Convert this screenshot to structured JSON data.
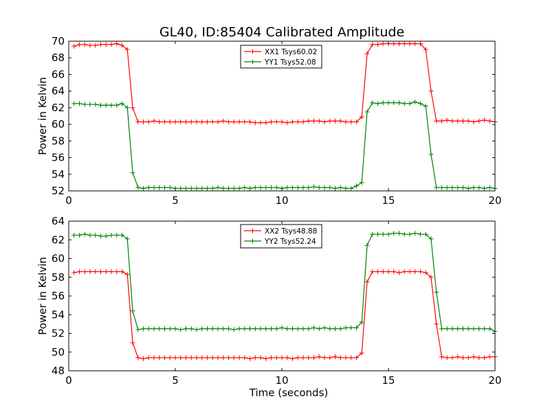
{
  "title": "GL40, ID:85404 Calibrated Amplitude",
  "colors": {
    "red": "#ff0000",
    "green": "#008000",
    "axis": "#000000",
    "background": "#ffffff"
  },
  "chart_data": [
    {
      "type": "line",
      "ylabel": "Power in Kelvin",
      "xlabel": "",
      "xlim": [
        0,
        20
      ],
      "ylim": [
        52,
        70
      ],
      "xticks": [
        "0",
        "5",
        "10",
        "15",
        "20"
      ],
      "yticks": [
        "52",
        "54",
        "56",
        "58",
        "60",
        "62",
        "64",
        "66",
        "68",
        "70"
      ],
      "legend_position": "top-center",
      "x": [
        0.25,
        0.5,
        0.75,
        1.0,
        1.25,
        1.5,
        1.75,
        2.0,
        2.25,
        2.5,
        2.75,
        3.0,
        3.25,
        3.5,
        3.75,
        4.0,
        4.25,
        4.5,
        4.75,
        5.0,
        5.25,
        5.5,
        5.75,
        6.0,
        6.25,
        6.5,
        6.75,
        7.0,
        7.25,
        7.5,
        7.75,
        8.0,
        8.25,
        8.5,
        8.75,
        9.0,
        9.25,
        9.5,
        9.75,
        10.0,
        10.25,
        10.5,
        10.75,
        11.0,
        11.25,
        11.5,
        11.75,
        12.0,
        12.25,
        12.5,
        12.75,
        13.0,
        13.25,
        13.5,
        13.75,
        14.0,
        14.25,
        14.5,
        14.75,
        15.0,
        15.25,
        15.5,
        15.75,
        16.0,
        16.25,
        16.5,
        16.75,
        17.0,
        17.25,
        17.5,
        17.75,
        18.0,
        18.25,
        18.5,
        18.75,
        19.0,
        19.25,
        19.5,
        19.75,
        20.0
      ],
      "series": [
        {
          "name": "XX1 Tsys60.02",
          "color": "#ff0000",
          "values": [
            69.4,
            69.6,
            69.6,
            69.5,
            69.5,
            69.6,
            69.6,
            69.6,
            69.7,
            69.5,
            69.0,
            62.0,
            60.3,
            60.3,
            60.3,
            60.4,
            60.3,
            60.3,
            60.3,
            60.3,
            60.3,
            60.3,
            60.3,
            60.3,
            60.3,
            60.3,
            60.3,
            60.3,
            60.4,
            60.3,
            60.3,
            60.3,
            60.3,
            60.3,
            60.2,
            60.2,
            60.2,
            60.3,
            60.3,
            60.3,
            60.2,
            60.3,
            60.3,
            60.3,
            60.4,
            60.4,
            60.4,
            60.3,
            60.4,
            60.4,
            60.4,
            60.3,
            60.3,
            60.3,
            60.9,
            68.5,
            69.6,
            69.6,
            69.7,
            69.7,
            69.7,
            69.7,
            69.7,
            69.7,
            69.7,
            69.7,
            69.0,
            64.0,
            60.4,
            60.4,
            60.5,
            60.4,
            60.4,
            60.4,
            60.4,
            60.3,
            60.4,
            60.5,
            60.4,
            60.3
          ]
        },
        {
          "name": "YY1 Tsys52.08",
          "color": "#008000",
          "values": [
            62.5,
            62.5,
            62.4,
            62.4,
            62.4,
            62.3,
            62.3,
            62.3,
            62.3,
            62.5,
            62.0,
            54.2,
            52.4,
            52.3,
            52.4,
            52.4,
            52.4,
            52.4,
            52.4,
            52.3,
            52.3,
            52.3,
            52.3,
            52.3,
            52.3,
            52.3,
            52.3,
            52.4,
            52.3,
            52.3,
            52.3,
            52.3,
            52.4,
            52.3,
            52.4,
            52.4,
            52.4,
            52.4,
            52.4,
            52.3,
            52.4,
            52.4,
            52.4,
            52.4,
            52.4,
            52.5,
            52.4,
            52.4,
            52.4,
            52.3,
            52.4,
            52.3,
            52.3,
            52.6,
            53.0,
            61.5,
            62.6,
            62.5,
            62.6,
            62.6,
            62.6,
            62.6,
            62.5,
            62.5,
            62.7,
            62.5,
            62.2,
            56.4,
            52.4,
            52.4,
            52.4,
            52.4,
            52.4,
            52.4,
            52.3,
            52.4,
            52.4,
            52.3,
            52.4,
            52.3
          ]
        }
      ]
    },
    {
      "type": "line",
      "ylabel": "Power in Kelvin",
      "xlabel": "Time (seconds)",
      "xlim": [
        0,
        20
      ],
      "ylim": [
        48,
        64
      ],
      "xticks": [
        "0",
        "5",
        "10",
        "15",
        "20"
      ],
      "yticks": [
        "48",
        "50",
        "52",
        "54",
        "56",
        "58",
        "60",
        "62",
        "64"
      ],
      "legend_position": "top-center",
      "x": [
        0.25,
        0.5,
        0.75,
        1.0,
        1.25,
        1.5,
        1.75,
        2.0,
        2.25,
        2.5,
        2.75,
        3.0,
        3.25,
        3.5,
        3.75,
        4.0,
        4.25,
        4.5,
        4.75,
        5.0,
        5.25,
        5.5,
        5.75,
        6.0,
        6.25,
        6.5,
        6.75,
        7.0,
        7.25,
        7.5,
        7.75,
        8.0,
        8.25,
        8.5,
        8.75,
        9.0,
        9.25,
        9.5,
        9.75,
        10.0,
        10.25,
        10.5,
        10.75,
        11.0,
        11.25,
        11.5,
        11.75,
        12.0,
        12.25,
        12.5,
        12.75,
        13.0,
        13.25,
        13.5,
        13.75,
        14.0,
        14.25,
        14.5,
        14.75,
        15.0,
        15.25,
        15.5,
        15.75,
        16.0,
        16.25,
        16.5,
        16.75,
        17.0,
        17.25,
        17.5,
        17.75,
        18.0,
        18.25,
        18.5,
        18.75,
        19.0,
        19.25,
        19.5,
        19.75,
        20.0
      ],
      "series": [
        {
          "name": "XX2 Tsys48.88",
          "color": "#ff0000",
          "values": [
            58.5,
            58.6,
            58.6,
            58.6,
            58.6,
            58.6,
            58.6,
            58.6,
            58.6,
            58.6,
            58.3,
            51.0,
            49.4,
            49.3,
            49.4,
            49.4,
            49.4,
            49.4,
            49.4,
            49.4,
            49.4,
            49.4,
            49.4,
            49.4,
            49.4,
            49.4,
            49.4,
            49.4,
            49.4,
            49.4,
            49.4,
            49.4,
            49.4,
            49.3,
            49.4,
            49.4,
            49.3,
            49.4,
            49.4,
            49.4,
            49.4,
            49.3,
            49.4,
            49.4,
            49.4,
            49.4,
            49.5,
            49.4,
            49.4,
            49.5,
            49.4,
            49.4,
            49.4,
            49.4,
            49.9,
            57.5,
            58.6,
            58.6,
            58.6,
            58.6,
            58.6,
            58.5,
            58.6,
            58.6,
            58.6,
            58.6,
            58.5,
            58.0,
            53.0,
            49.5,
            49.4,
            49.4,
            49.5,
            49.4,
            49.4,
            49.5,
            49.4,
            49.4,
            49.5,
            49.5
          ]
        },
        {
          "name": "YY2 Tsys52.24",
          "color": "#008000",
          "values": [
            62.5,
            62.5,
            62.6,
            62.5,
            62.5,
            62.4,
            62.4,
            62.5,
            62.5,
            62.5,
            62.1,
            54.4,
            52.4,
            52.5,
            52.5,
            52.5,
            52.5,
            52.5,
            52.5,
            52.5,
            52.4,
            52.5,
            52.5,
            52.4,
            52.5,
            52.5,
            52.5,
            52.5,
            52.5,
            52.5,
            52.4,
            52.5,
            52.5,
            52.5,
            52.5,
            52.5,
            52.5,
            52.5,
            52.5,
            52.6,
            52.5,
            52.5,
            52.5,
            52.5,
            52.5,
            52.6,
            52.5,
            52.6,
            52.5,
            52.5,
            52.5,
            52.6,
            52.6,
            52.6,
            53.2,
            61.4,
            62.6,
            62.6,
            62.6,
            62.6,
            62.7,
            62.7,
            62.6,
            62.6,
            62.7,
            62.6,
            62.6,
            62.1,
            56.4,
            52.5,
            52.5,
            52.5,
            52.5,
            52.5,
            52.5,
            52.5,
            52.5,
            52.5,
            52.5,
            52.2
          ]
        }
      ]
    }
  ]
}
